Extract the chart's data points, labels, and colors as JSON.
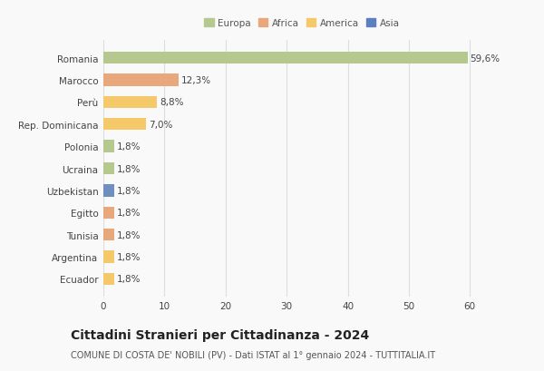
{
  "countries": [
    "Romania",
    "Marocco",
    "Perù",
    "Rep. Dominicana",
    "Polonia",
    "Ucraina",
    "Uzbekistan",
    "Egitto",
    "Tunisia",
    "Argentina",
    "Ecuador"
  ],
  "values": [
    59.6,
    12.3,
    8.8,
    7.0,
    1.8,
    1.8,
    1.8,
    1.8,
    1.8,
    1.8,
    1.8
  ],
  "labels": [
    "59,6%",
    "12,3%",
    "8,8%",
    "7,0%",
    "1,8%",
    "1,8%",
    "1,8%",
    "1,8%",
    "1,8%",
    "1,8%",
    "1,8%"
  ],
  "colors": [
    "#b5c98e",
    "#e8a87c",
    "#f5c96a",
    "#f5c96a",
    "#b5c98e",
    "#b5c98e",
    "#6e8fbf",
    "#e8a87c",
    "#e8a87c",
    "#f5c96a",
    "#f5c96a"
  ],
  "legend": [
    {
      "label": "Europa",
      "color": "#b5c98e"
    },
    {
      "label": "Africa",
      "color": "#e8a87c"
    },
    {
      "label": "America",
      "color": "#f5c96a"
    },
    {
      "label": "Asia",
      "color": "#5b7fbf"
    }
  ],
  "xlim": [
    0,
    65
  ],
  "xticks": [
    0,
    10,
    20,
    30,
    40,
    50,
    60
  ],
  "title": "Cittadini Stranieri per Cittadinanza - 2024",
  "subtitle": "COMUNE DI COSTA DE' NOBILI (PV) - Dati ISTAT al 1° gennaio 2024 - TUTTITALIA.IT",
  "background_color": "#f9f9f9",
  "grid_color": "#dddddd",
  "bar_height": 0.55,
  "label_fontsize": 7.5,
  "tick_fontsize": 7.5,
  "title_fontsize": 10,
  "subtitle_fontsize": 7
}
